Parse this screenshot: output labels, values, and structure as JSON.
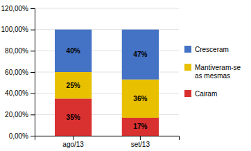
{
  "chart_data": {
    "type": "bar",
    "stacked": true,
    "data_labels": true,
    "grid": true,
    "legend": "right",
    "categories": [
      "ago/13",
      "set/13"
    ],
    "series": [
      {
        "name": "Cairam",
        "color": "#d93030",
        "values": [
          35,
          17
        ],
        "value_labels": [
          "35%",
          "17%"
        ]
      },
      {
        "name": "Mantiveram-se\nas mesmas",
        "color": "#e8c000",
        "values": [
          25,
          36
        ],
        "value_labels": [
          "25%",
          "36%"
        ]
      },
      {
        "name": "Cresceram",
        "color": "#4472c4",
        "values": [
          40,
          47
        ],
        "value_labels": [
          "40%",
          "47%"
        ]
      }
    ],
    "ylim": [
      0,
      120
    ],
    "yticks": [
      {
        "value": 0,
        "label": "0,00%"
      },
      {
        "value": 20,
        "label": "20,00%"
      },
      {
        "value": 40,
        "label": "40,00%"
      },
      {
        "value": 60,
        "label": "60,00%"
      },
      {
        "value": 80,
        "label": "80,00%"
      },
      {
        "value": 100,
        "label": "100,00%"
      },
      {
        "value": 120,
        "label": "120,00%"
      }
    ]
  }
}
